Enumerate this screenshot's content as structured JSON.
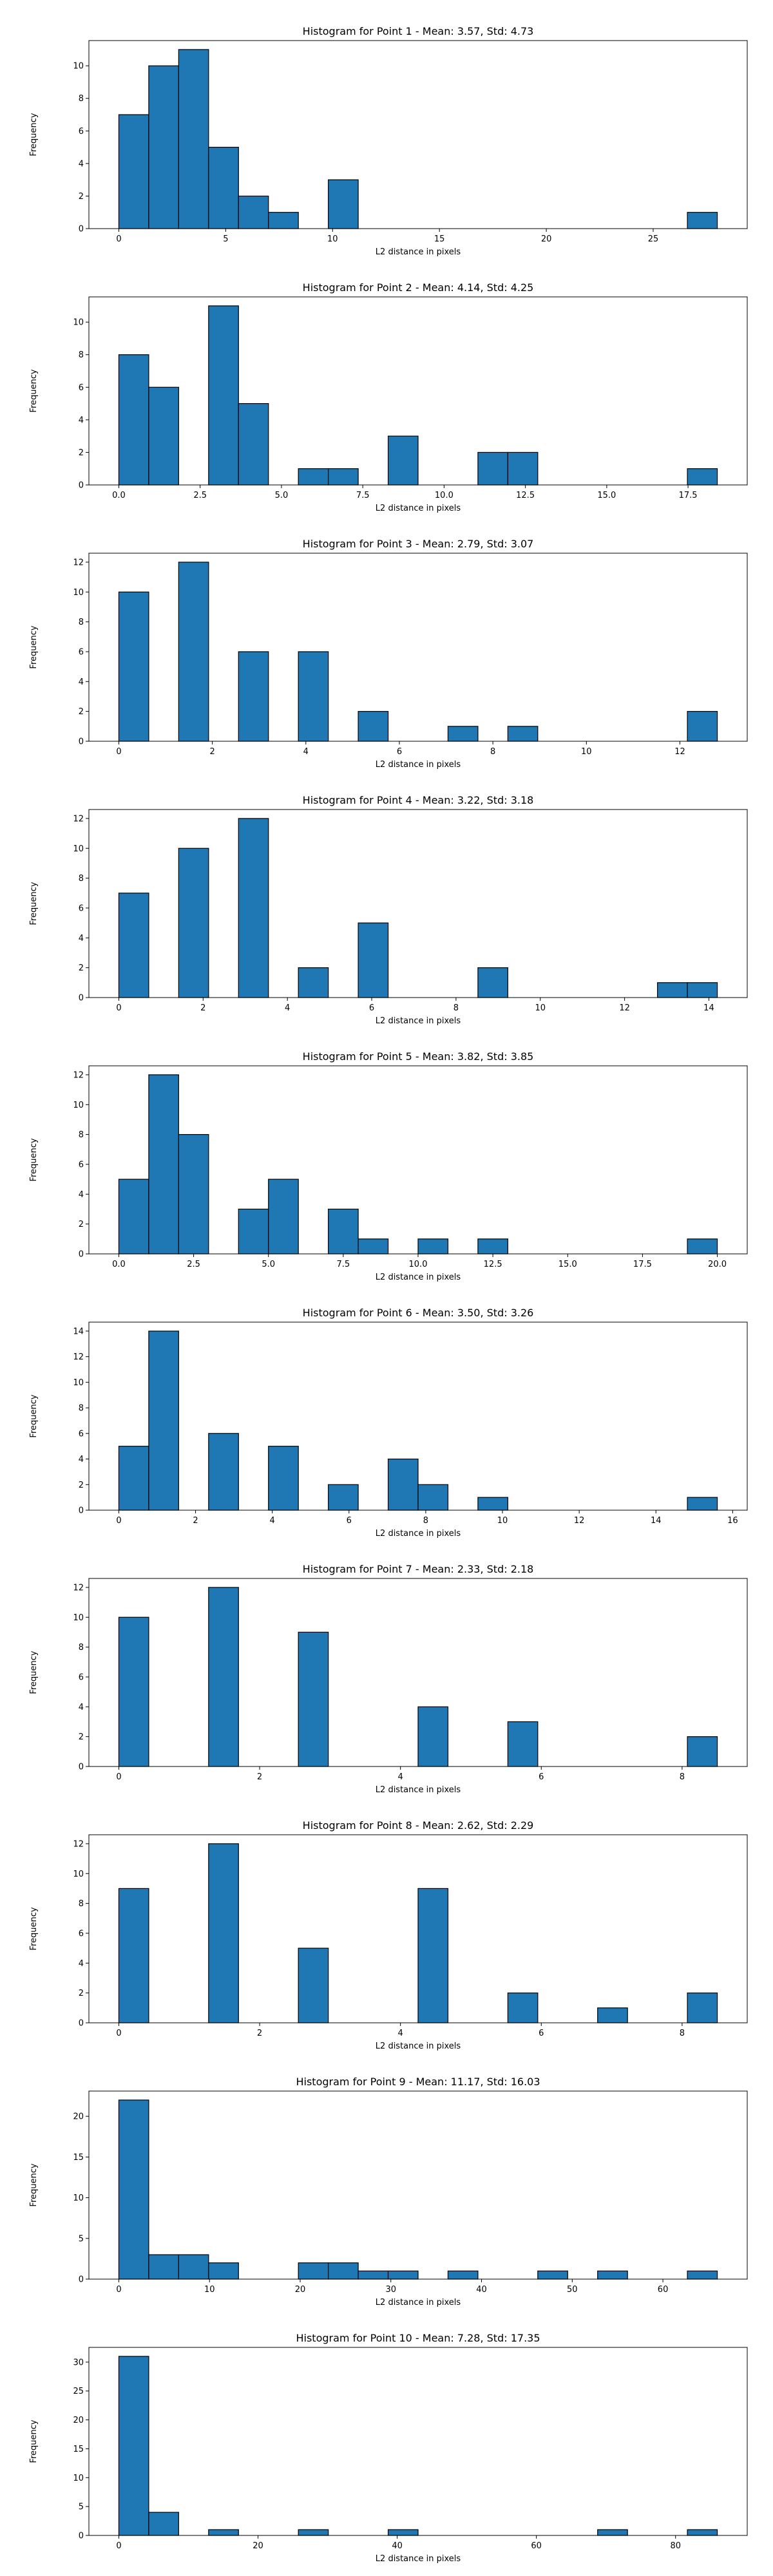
{
  "colors": {
    "bar_fill": "#1f77b4",
    "bar_edge": "#000000",
    "axis": "#000000",
    "background": "#ffffff"
  },
  "chart_data": [
    {
      "type": "bar",
      "title": "Histogram for Point 1 - Mean: 3.57, Std: 4.73",
      "xlabel": "L2 distance in pixels",
      "ylabel": "Frequency",
      "xlim": [
        -1.4,
        29.4
      ],
      "ylim": [
        0,
        11.55
      ],
      "xticks": [
        0,
        5,
        10,
        15,
        20,
        25
      ],
      "xtick_labels": [
        "0",
        "5",
        "10",
        "15",
        "20",
        "25"
      ],
      "yticks": [
        0,
        2,
        4,
        6,
        8,
        10
      ],
      "bin_edges": [
        0.0,
        1.4,
        2.8,
        4.2,
        5.6,
        7.0,
        8.4,
        9.8,
        11.2,
        12.6,
        14.0,
        15.4,
        16.8,
        18.2,
        19.6,
        21.0,
        22.4,
        23.8,
        25.2,
        26.6,
        28.0
      ],
      "values": [
        7,
        10,
        11,
        5,
        2,
        1,
        0,
        3,
        0,
        0,
        0,
        0,
        0,
        0,
        0,
        0,
        0,
        0,
        0,
        1
      ]
    },
    {
      "type": "bar",
      "title": "Histogram for Point 2 - Mean: 4.14, Std: 4.25",
      "xlabel": "L2 distance in pixels",
      "ylabel": "Frequency",
      "xlim": [
        -0.92,
        19.32
      ],
      "ylim": [
        0,
        11.55
      ],
      "xticks": [
        0,
        2.5,
        5,
        7.5,
        10,
        12.5,
        15,
        17.5
      ],
      "xtick_labels": [
        "0.0",
        "2.5",
        "5.0",
        "7.5",
        "10.0",
        "12.5",
        "15.0",
        "17.5"
      ],
      "yticks": [
        0,
        2,
        4,
        6,
        8,
        10
      ],
      "bin_edges": [
        0.0,
        0.92,
        1.84,
        2.76,
        3.68,
        4.6,
        5.52,
        6.44,
        7.36,
        8.28,
        9.2,
        10.12,
        11.04,
        11.96,
        12.88,
        13.8,
        14.72,
        15.64,
        16.56,
        17.48,
        18.4
      ],
      "values": [
        8,
        6,
        0,
        11,
        5,
        0,
        1,
        1,
        0,
        3,
        0,
        0,
        2,
        2,
        0,
        0,
        0,
        0,
        0,
        1
      ]
    },
    {
      "type": "bar",
      "title": "Histogram for Point 3 - Mean: 2.79, Std: 3.07",
      "xlabel": "L2 distance in pixels",
      "ylabel": "Frequency",
      "xlim": [
        -0.64,
        13.44
      ],
      "ylim": [
        0,
        12.6
      ],
      "xticks": [
        0,
        2,
        4,
        6,
        8,
        10,
        12
      ],
      "xtick_labels": [
        "0",
        "2",
        "4",
        "6",
        "8",
        "10",
        "12"
      ],
      "yticks": [
        0,
        2,
        4,
        6,
        8,
        10,
        12
      ],
      "bin_edges": [
        0.0,
        0.64,
        1.28,
        1.92,
        2.56,
        3.2,
        3.84,
        4.48,
        5.12,
        5.76,
        6.4,
        7.04,
        7.68,
        8.32,
        8.96,
        9.6,
        10.24,
        10.88,
        11.52,
        12.16,
        12.8
      ],
      "values": [
        10,
        0,
        12,
        0,
        6,
        0,
        6,
        0,
        2,
        0,
        0,
        1,
        0,
        1,
        0,
        0,
        0,
        0,
        0,
        2
      ]
    },
    {
      "type": "bar",
      "title": "Histogram for Point 4 - Mean: 3.22, Std: 3.18",
      "xlabel": "L2 distance in pixels",
      "ylabel": "Frequency",
      "xlim": [
        -0.71,
        14.91
      ],
      "ylim": [
        0,
        12.6
      ],
      "xticks": [
        0,
        2,
        4,
        6,
        8,
        10,
        12,
        14
      ],
      "xtick_labels": [
        "0",
        "2",
        "4",
        "6",
        "8",
        "10",
        "12",
        "14"
      ],
      "yticks": [
        0,
        2,
        4,
        6,
        8,
        10,
        12
      ],
      "bin_edges": [
        0.0,
        0.71,
        1.42,
        2.13,
        2.84,
        3.55,
        4.26,
        4.97,
        5.68,
        6.39,
        7.1,
        7.81,
        8.52,
        9.23,
        9.94,
        10.65,
        11.36,
        12.07,
        12.78,
        13.49,
        14.2
      ],
      "values": [
        7,
        0,
        10,
        0,
        12,
        0,
        2,
        0,
        5,
        0,
        0,
        0,
        2,
        0,
        0,
        0,
        0,
        0,
        1,
        1
      ]
    },
    {
      "type": "bar",
      "title": "Histogram for Point 5 - Mean: 3.82, Std: 3.85",
      "xlabel": "L2 distance in pixels",
      "ylabel": "Frequency",
      "xlim": [
        -1.0,
        21.0
      ],
      "ylim": [
        0,
        12.6
      ],
      "xticks": [
        0,
        2.5,
        5,
        7.5,
        10,
        12.5,
        15,
        17.5,
        20
      ],
      "xtick_labels": [
        "0.0",
        "2.5",
        "5.0",
        "7.5",
        "10.0",
        "12.5",
        "15.0",
        "17.5",
        "20.0"
      ],
      "yticks": [
        0,
        2,
        4,
        6,
        8,
        10,
        12
      ],
      "bin_edges": [
        0.0,
        1.0,
        2.0,
        3.0,
        4.0,
        5.0,
        6.0,
        7.0,
        8.0,
        9.0,
        10.0,
        11.0,
        12.0,
        13.0,
        14.0,
        15.0,
        16.0,
        17.0,
        18.0,
        19.0,
        20.0
      ],
      "values": [
        5,
        12,
        8,
        0,
        3,
        5,
        0,
        3,
        1,
        0,
        1,
        0,
        1,
        0,
        0,
        0,
        0,
        0,
        0,
        1
      ]
    },
    {
      "type": "bar",
      "title": "Histogram for Point 6 - Mean: 3.50, Std: 3.26",
      "xlabel": "L2 distance in pixels",
      "ylabel": "Frequency",
      "xlim": [
        -0.78,
        16.38
      ],
      "ylim": [
        0,
        14.7
      ],
      "xticks": [
        0,
        2,
        4,
        6,
        8,
        10,
        12,
        14,
        16
      ],
      "xtick_labels": [
        "0",
        "2",
        "4",
        "6",
        "8",
        "10",
        "12",
        "14",
        "16"
      ],
      "yticks": [
        0,
        2,
        4,
        6,
        8,
        10,
        12,
        14
      ],
      "bin_edges": [
        0.0,
        0.78,
        1.56,
        2.34,
        3.12,
        3.9,
        4.68,
        5.46,
        6.24,
        7.02,
        7.8,
        8.58,
        9.36,
        10.14,
        10.92,
        11.7,
        12.48,
        13.26,
        14.04,
        14.82,
        15.6
      ],
      "values": [
        5,
        14,
        0,
        6,
        0,
        5,
        0,
        2,
        0,
        4,
        2,
        0,
        1,
        0,
        0,
        0,
        0,
        0,
        0,
        1
      ]
    },
    {
      "type": "bar",
      "title": "Histogram for Point 7 - Mean: 2.33, Std: 2.18",
      "xlabel": "L2 distance in pixels",
      "ylabel": "Frequency",
      "xlim": [
        -0.425,
        8.925
      ],
      "ylim": [
        0,
        12.6
      ],
      "xticks": [
        0,
        2,
        4,
        6,
        8
      ],
      "xtick_labels": [
        "0",
        "2",
        "4",
        "6",
        "8"
      ],
      "yticks": [
        0,
        2,
        4,
        6,
        8,
        10,
        12
      ],
      "bin_edges": [
        0.0,
        0.425,
        0.85,
        1.275,
        1.7,
        2.125,
        2.55,
        2.975,
        3.4,
        3.825,
        4.25,
        4.675,
        5.1,
        5.525,
        5.95,
        6.375,
        6.8,
        7.225,
        7.65,
        8.075,
        8.5
      ],
      "values": [
        10,
        0,
        0,
        12,
        0,
        0,
        9,
        0,
        0,
        0,
        4,
        0,
        0,
        3,
        0,
        0,
        0,
        0,
        0,
        2
      ]
    },
    {
      "type": "bar",
      "title": "Histogram for Point 8 - Mean: 2.62, Std: 2.29",
      "xlabel": "L2 distance in pixels",
      "ylabel": "Frequency",
      "xlim": [
        -0.425,
        8.925
      ],
      "ylim": [
        0,
        12.6
      ],
      "xticks": [
        0,
        2,
        4,
        6,
        8
      ],
      "xtick_labels": [
        "0",
        "2",
        "4",
        "6",
        "8"
      ],
      "yticks": [
        0,
        2,
        4,
        6,
        8,
        10,
        12
      ],
      "bin_edges": [
        0.0,
        0.425,
        0.85,
        1.275,
        1.7,
        2.125,
        2.55,
        2.975,
        3.4,
        3.825,
        4.25,
        4.675,
        5.1,
        5.525,
        5.95,
        6.375,
        6.8,
        7.225,
        7.65,
        8.075,
        8.5
      ],
      "values": [
        9,
        0,
        0,
        12,
        0,
        0,
        5,
        0,
        0,
        0,
        9,
        0,
        0,
        2,
        0,
        0,
        1,
        0,
        0,
        2
      ]
    },
    {
      "type": "bar",
      "title": "Histogram for Point 9 - Mean: 11.17, Std: 16.03",
      "xlabel": "L2 distance in pixels",
      "ylabel": "Frequency",
      "xlim": [
        -3.3,
        69.3
      ],
      "ylim": [
        0,
        23.1
      ],
      "xticks": [
        0,
        10,
        20,
        30,
        40,
        50,
        60
      ],
      "xtick_labels": [
        "0",
        "10",
        "20",
        "30",
        "40",
        "50",
        "60"
      ],
      "yticks": [
        0,
        5,
        10,
        15,
        20
      ],
      "bin_edges": [
        0.0,
        3.3,
        6.6,
        9.9,
        13.2,
        16.5,
        19.8,
        23.1,
        26.4,
        29.7,
        33.0,
        36.3,
        39.6,
        42.9,
        46.2,
        49.5,
        52.8,
        56.1,
        59.4,
        62.7,
        66.0
      ],
      "values": [
        22,
        3,
        3,
        2,
        0,
        0,
        2,
        2,
        1,
        1,
        0,
        1,
        0,
        0,
        1,
        0,
        1,
        0,
        0,
        1
      ]
    },
    {
      "type": "bar",
      "title": "Histogram for Point 10 - Mean: 7.28, Std: 17.35",
      "xlabel": "L2 distance in pixels",
      "ylabel": "Frequency",
      "xlim": [
        -4.3,
        90.3
      ],
      "ylim": [
        0,
        32.55
      ],
      "xticks": [
        0,
        20,
        40,
        60,
        80
      ],
      "xtick_labels": [
        "0",
        "20",
        "40",
        "60",
        "80"
      ],
      "yticks": [
        0,
        5,
        10,
        15,
        20,
        25,
        30
      ],
      "bin_edges": [
        0.0,
        4.3,
        8.6,
        12.9,
        17.2,
        21.5,
        25.8,
        30.1,
        34.4,
        38.7,
        43.0,
        47.3,
        51.6,
        55.9,
        60.2,
        64.5,
        68.8,
        73.1,
        77.4,
        81.7,
        86.0
      ],
      "values": [
        31,
        4,
        0,
        1,
        0,
        0,
        1,
        0,
        0,
        1,
        0,
        0,
        0,
        0,
        0,
        0,
        1,
        0,
        0,
        1
      ]
    }
  ]
}
